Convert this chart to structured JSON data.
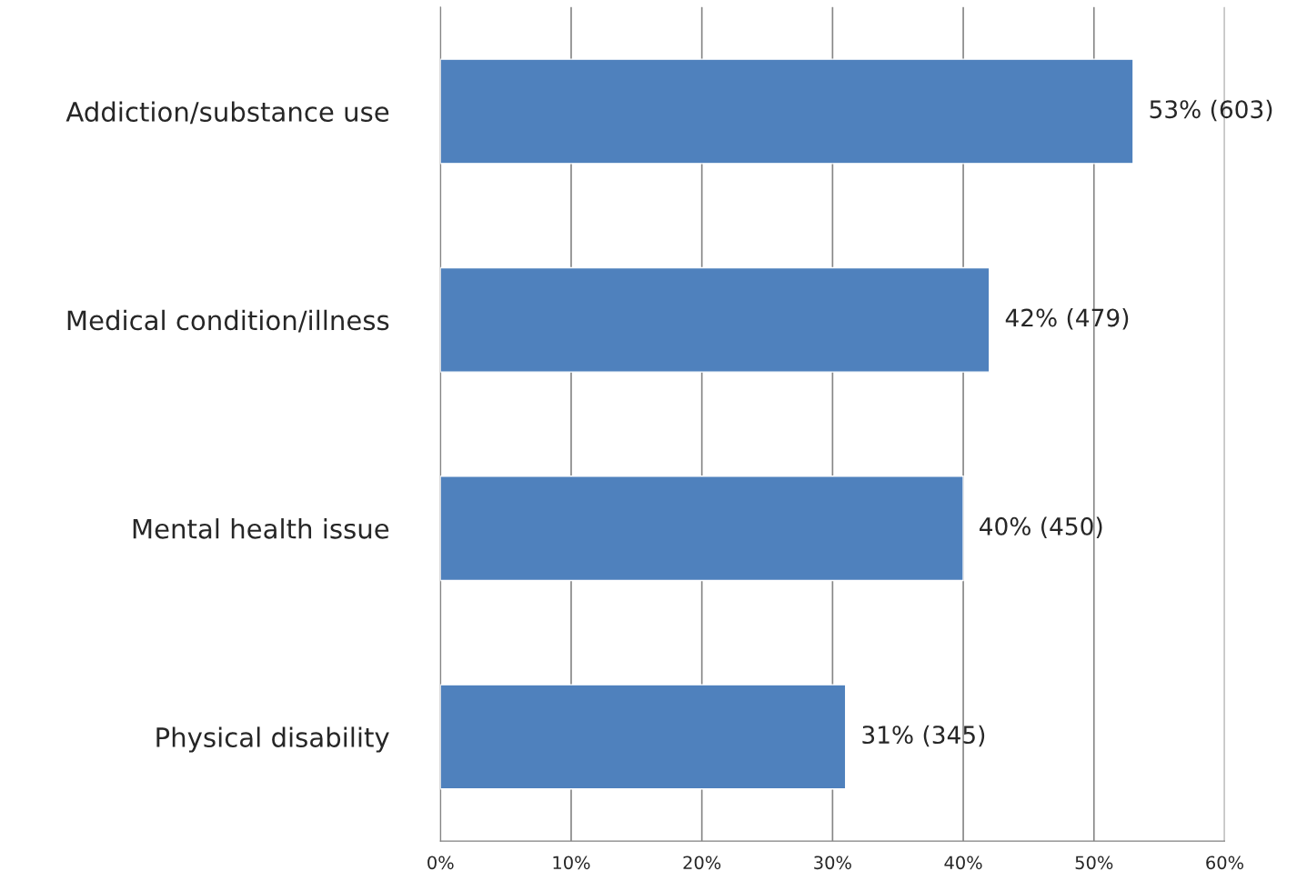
{
  "chart_data": {
    "type": "bar",
    "orientation": "horizontal",
    "categories": [
      "Addiction/substance use",
      "Medical condition/illness",
      "Mental health issue",
      "Physical disability"
    ],
    "values": [
      53,
      42,
      40,
      31
    ],
    "color": "#4f81bd",
    "value_labels": [
      "53% (603)",
      "42% (479)",
      "40% (450)",
      "31% (345)"
    ],
    "xlim": [
      0,
      60
    ],
    "xticks": [
      {
        "value": 0,
        "label": "0%"
      },
      {
        "value": 10,
        "label": "10%"
      },
      {
        "value": 20,
        "label": "20%"
      },
      {
        "value": 30,
        "label": "30%"
      },
      {
        "value": 40,
        "label": "40%"
      },
      {
        "value": 50,
        "label": "50%"
      },
      {
        "value": 60,
        "label": "60%"
      }
    ],
    "grid": "x",
    "legend": false
  }
}
